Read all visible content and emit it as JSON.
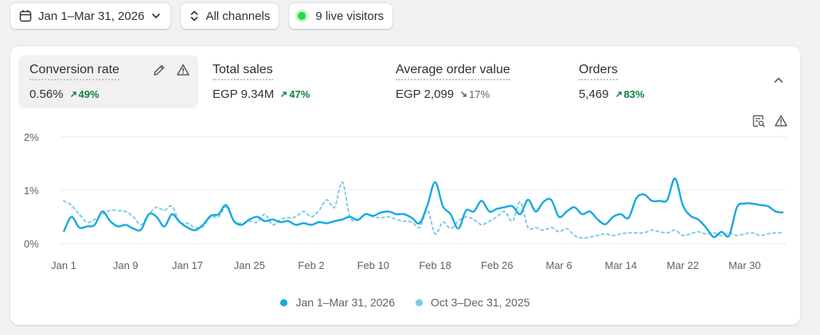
{
  "toolbar": {
    "date_range": "Jan 1–Mar 31, 2026",
    "channels": "All channels",
    "live_visitors": "9 live visitors"
  },
  "metrics": [
    {
      "label": "Conversion rate",
      "value": "0.56%",
      "delta": "49%",
      "direction": "up"
    },
    {
      "label": "Total sales",
      "value": "EGP 9.34M",
      "delta": "47%",
      "direction": "up"
    },
    {
      "label": "Average order value",
      "value": "EGP 2,099",
      "delta": "17%",
      "direction": "down"
    },
    {
      "label": "Orders",
      "value": "5,469",
      "delta": "83%",
      "direction": "up"
    }
  ],
  "colors": {
    "primary": "#16a9e1",
    "comparison": "#7fc9ea",
    "up": "#108043",
    "live": "#27d84a"
  },
  "icons": [
    "calendar-icon",
    "chevron-down-icon",
    "sort-arrows-icon",
    "pencil-icon",
    "warning-icon",
    "chevron-up-icon",
    "search-report-icon"
  ],
  "chart_data": {
    "type": "line",
    "x_tick_labels": [
      "Jan 1",
      "Jan 9",
      "Jan 17",
      "Jan 25",
      "Feb 2",
      "Feb 10",
      "Feb 18",
      "Feb 26",
      "Mar 6",
      "Mar 14",
      "Mar 22",
      "Mar 30"
    ],
    "x_tick_day_index": [
      0,
      8,
      16,
      24,
      32,
      40,
      48,
      56,
      64,
      72,
      80,
      88
    ],
    "y_tick_labels": [
      "2%",
      "1%",
      "0%"
    ],
    "y_tick_values": [
      2,
      1,
      0
    ],
    "ylim": [
      0,
      2
    ],
    "grid": true,
    "legend_position": "bottom-center",
    "series": [
      {
        "name": "Jan 1–Mar 31, 2026",
        "style": "solid",
        "values": [
          0.22,
          0.5,
          0.3,
          0.32,
          0.35,
          0.6,
          0.42,
          0.32,
          0.35,
          0.28,
          0.26,
          0.55,
          0.5,
          0.32,
          0.55,
          0.4,
          0.3,
          0.25,
          0.35,
          0.52,
          0.55,
          0.72,
          0.42,
          0.35,
          0.45,
          0.5,
          0.42,
          0.45,
          0.4,
          0.42,
          0.35,
          0.38,
          0.35,
          0.4,
          0.38,
          0.42,
          0.45,
          0.5,
          0.44,
          0.55,
          0.52,
          0.58,
          0.6,
          0.55,
          0.55,
          0.48,
          0.38,
          0.72,
          1.15,
          0.7,
          0.55,
          0.28,
          0.62,
          0.6,
          0.8,
          0.6,
          0.65,
          0.68,
          0.7,
          0.55,
          0.82,
          0.6,
          0.78,
          0.82,
          0.5,
          0.6,
          0.68,
          0.55,
          0.6,
          0.45,
          0.36,
          0.5,
          0.55,
          0.48,
          0.85,
          0.92,
          0.8,
          0.8,
          0.82,
          1.22,
          0.72,
          0.52,
          0.45,
          0.3,
          0.12,
          0.22,
          0.15,
          0.68,
          0.75,
          0.75,
          0.72,
          0.7,
          0.6,
          0.58
        ]
      },
      {
        "name": "Oct 3–Dec 31, 2025",
        "style": "dashed",
        "values": [
          0.8,
          0.72,
          0.55,
          0.4,
          0.45,
          0.55,
          0.62,
          0.62,
          0.6,
          0.5,
          0.35,
          0.55,
          0.68,
          0.62,
          0.7,
          0.4,
          0.38,
          0.3,
          0.32,
          0.5,
          0.5,
          0.68,
          0.42,
          0.38,
          0.42,
          0.4,
          0.55,
          0.35,
          0.45,
          0.48,
          0.5,
          0.6,
          0.5,
          0.62,
          0.82,
          0.68,
          1.15,
          0.5,
          0.45,
          0.55,
          0.5,
          0.48,
          0.5,
          0.45,
          0.42,
          0.4,
          0.3,
          0.62,
          0.18,
          0.4,
          0.28,
          0.42,
          0.5,
          0.45,
          0.35,
          0.42,
          0.5,
          0.6,
          0.42,
          0.78,
          0.3,
          0.3,
          0.25,
          0.3,
          0.22,
          0.28,
          0.15,
          0.1,
          0.12,
          0.15,
          0.18,
          0.15,
          0.18,
          0.2,
          0.2,
          0.2,
          0.25,
          0.22,
          0.2,
          0.25,
          0.15,
          0.18,
          0.22,
          0.18,
          0.2,
          0.15,
          0.2,
          0.15,
          0.18,
          0.2,
          0.15,
          0.18,
          0.2,
          0.2
        ]
      }
    ]
  }
}
